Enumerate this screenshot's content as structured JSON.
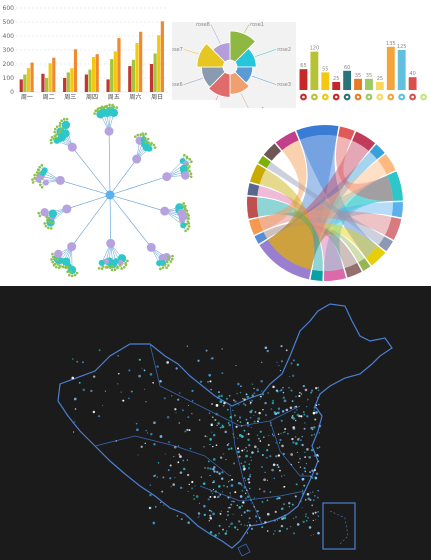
{
  "chart_data": [
    {
      "type": "bar",
      "categories": [
        "周一",
        "周二",
        "周三",
        "周四",
        "周五",
        "周六",
        "周日"
      ],
      "series": [
        {
          "color": "#c23531",
          "values": [
            90,
            130,
            100,
            125,
            90,
            185,
            200
          ]
        },
        {
          "color": "#a5c33b",
          "values": [
            125,
            100,
            140,
            160,
            235,
            230,
            275
          ]
        },
        {
          "color": "#f2c811",
          "values": [
            170,
            205,
            170,
            250,
            290,
            350,
            405
          ]
        },
        {
          "color": "#ee8a30",
          "values": [
            210,
            245,
            305,
            270,
            385,
            430,
            505
          ]
        }
      ],
      "yticks": [
        0,
        100,
        200,
        300,
        400,
        500,
        600
      ],
      "ylim": [
        0,
        600
      ],
      "grid": true
    },
    {
      "type": "pie",
      "subtype": "nightingale",
      "slices": [
        {
          "label": "rose1",
          "value": 45,
          "color": "#8fb843"
        },
        {
          "label": "rose2",
          "value": 28,
          "color": "#26c6da"
        },
        {
          "label": "rose3",
          "value": 22,
          "color": "#5b9bd5"
        },
        {
          "label": "rose4",
          "value": 30,
          "color": "#f0a070"
        },
        {
          "label": "rose5",
          "value": 35,
          "color": "#e06b6b"
        },
        {
          "label": "rose6",
          "value": 32,
          "color": "#8a9bb0"
        },
        {
          "label": "rose7",
          "value": 40,
          "color": "#e6c620"
        },
        {
          "label": "rose8",
          "value": 25,
          "color": "#b39ddb"
        }
      ]
    },
    {
      "type": "bar",
      "categories": [
        "a",
        "b",
        "c",
        "d",
        "e",
        "f",
        "g",
        "h",
        "i",
        "j",
        "k",
        "l"
      ],
      "values": [
        65,
        120,
        55,
        25,
        60,
        35,
        35,
        25,
        135,
        125,
        40,
        0
      ],
      "colors": [
        "#c62828",
        "#b5c334",
        "#f2c811",
        "#c62828",
        "#27727b",
        "#e87c25",
        "#9bca63",
        "#fad860",
        "#f3a43b",
        "#60c0dd",
        "#d7504b",
        "#c6e579"
      ],
      "ylim": [
        0,
        150
      ],
      "grid": false
    },
    {
      "type": "tree",
      "layout": "radial",
      "node_colors": {
        "leaf": "#2ec7c9",
        "branch": "#b6a2de",
        "root": "#5ab1ef",
        "tip": "#8bc34a"
      }
    },
    {
      "type": "chord",
      "segment_colors": [
        "#3a7bd5",
        "#e05a5a",
        "#c13b5a",
        "#37a2da",
        "#ffb980",
        "#2ec7c9",
        "#5ab1ef",
        "#d87a80",
        "#8d98b3",
        "#e5cf0d",
        "#97b552",
        "#95706d",
        "#dc69aa",
        "#07a2a4",
        "#9a7fd1",
        "#588dd5",
        "#f5994e",
        "#c05050",
        "#59678c",
        "#c9ab00",
        "#7eb00a",
        "#6f5553",
        "#c14089"
      ]
    },
    {
      "type": "scatter",
      "subtype": "geo-map",
      "background": "#1b1b1b",
      "outline_color": "#4a7fd4",
      "point_colors": [
        "#8cc7ff",
        "#3b98d6",
        "#ffffff",
        "#2ec7c9"
      ]
    }
  ]
}
